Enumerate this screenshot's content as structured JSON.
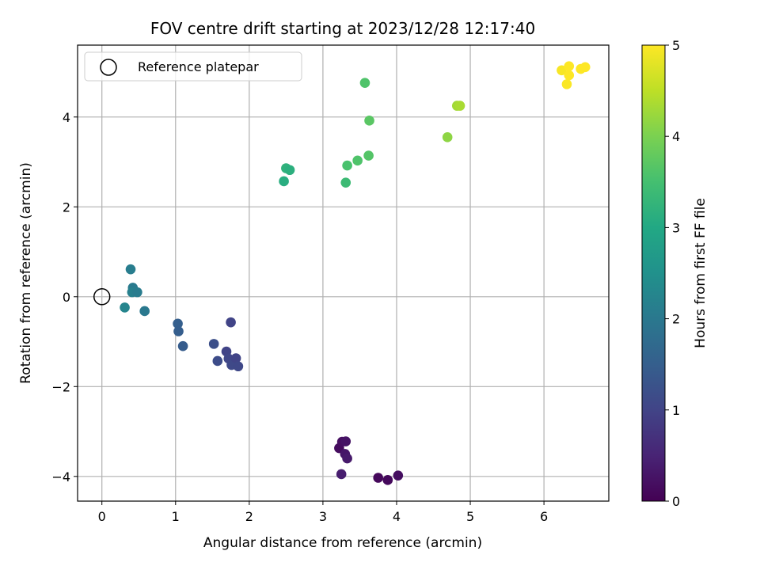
{
  "chart_data": {
    "type": "scatter",
    "title": "FOV centre drift starting at 2023/12/28 12:17:40",
    "xlabel": "Angular distance from reference (arcmin)",
    "ylabel": "Rotation from reference (arcmin)",
    "xlim": [
      -0.33,
      6.88
    ],
    "ylim": [
      -4.55,
      5.6
    ],
    "x_ticks": [
      0,
      1,
      2,
      3,
      4,
      5,
      6
    ],
    "y_ticks": [
      -4,
      -2,
      0,
      2,
      4
    ],
    "x_tick_labels": [
      "0",
      "1",
      "2",
      "3",
      "4",
      "5",
      "6"
    ],
    "y_tick_labels": [
      "−4",
      "−2",
      "0",
      "2",
      "4"
    ],
    "grid": true,
    "colormap": "viridis",
    "colorbar": {
      "label": "Hours from first FF file",
      "min": 0,
      "max": 5,
      "ticks": [
        "0",
        "1",
        "2",
        "3",
        "4",
        "5"
      ]
    },
    "legend": {
      "placement": "top-left",
      "entries": [
        {
          "label": "Reference platepar",
          "marker": "open-circle",
          "x": 0,
          "y": 0
        }
      ]
    },
    "points": [
      {
        "x": 3.22,
        "y": -3.37,
        "hours": 0.15
      },
      {
        "x": 3.26,
        "y": -3.23,
        "hours": 0.2
      },
      {
        "x": 3.31,
        "y": -3.22,
        "hours": 0.25
      },
      {
        "x": 3.3,
        "y": -3.5,
        "hours": 0.3
      },
      {
        "x": 3.33,
        "y": -3.6,
        "hours": 0.35
      },
      {
        "x": 3.25,
        "y": -3.95,
        "hours": 0.4
      },
      {
        "x": 3.75,
        "y": -4.03,
        "hours": 0.1
      },
      {
        "x": 3.88,
        "y": -4.08,
        "hours": 0.12
      },
      {
        "x": 4.02,
        "y": -3.98,
        "hours": 0.18
      },
      {
        "x": 1.75,
        "y": -0.57,
        "hours": 1.0
      },
      {
        "x": 1.52,
        "y": -1.05,
        "hours": 1.2
      },
      {
        "x": 1.69,
        "y": -1.22,
        "hours": 1.0
      },
      {
        "x": 1.72,
        "y": -1.38,
        "hours": 1.05
      },
      {
        "x": 1.57,
        "y": -1.43,
        "hours": 1.15
      },
      {
        "x": 1.76,
        "y": -1.52,
        "hours": 1.1
      },
      {
        "x": 1.82,
        "y": -1.37,
        "hours": 1.0
      },
      {
        "x": 1.85,
        "y": -1.55,
        "hours": 1.08
      },
      {
        "x": 1.03,
        "y": -0.6,
        "hours": 1.5
      },
      {
        "x": 1.04,
        "y": -0.77,
        "hours": 1.48
      },
      {
        "x": 1.1,
        "y": -1.1,
        "hours": 1.45
      },
      {
        "x": 0.39,
        "y": 0.61,
        "hours": 2.1
      },
      {
        "x": 0.42,
        "y": 0.2,
        "hours": 2.05
      },
      {
        "x": 0.41,
        "y": 0.1,
        "hours": 2.15
      },
      {
        "x": 0.48,
        "y": 0.1,
        "hours": 2.08
      },
      {
        "x": 0.31,
        "y": -0.24,
        "hours": 2.25
      },
      {
        "x": 0.58,
        "y": -0.32,
        "hours": 2.0
      },
      {
        "x": 2.5,
        "y": 2.86,
        "hours": 3.2
      },
      {
        "x": 2.55,
        "y": 2.82,
        "hours": 3.15
      },
      {
        "x": 2.47,
        "y": 2.57,
        "hours": 3.1
      },
      {
        "x": 3.31,
        "y": 2.54,
        "hours": 3.4
      },
      {
        "x": 3.33,
        "y": 2.92,
        "hours": 3.55
      },
      {
        "x": 3.47,
        "y": 3.03,
        "hours": 3.6
      },
      {
        "x": 3.62,
        "y": 3.14,
        "hours": 3.65
      },
      {
        "x": 3.63,
        "y": 3.92,
        "hours": 3.7
      },
      {
        "x": 3.57,
        "y": 4.76,
        "hours": 3.6
      },
      {
        "x": 4.69,
        "y": 3.55,
        "hours": 4.15
      },
      {
        "x": 4.82,
        "y": 4.25,
        "hours": 4.3
      },
      {
        "x": 4.86,
        "y": 4.25,
        "hours": 4.35
      },
      {
        "x": 6.24,
        "y": 5.04,
        "hours": 4.95
      },
      {
        "x": 6.34,
        "y": 5.13,
        "hours": 5.0
      },
      {
        "x": 6.31,
        "y": 4.73,
        "hours": 4.98
      },
      {
        "x": 6.34,
        "y": 4.93,
        "hours": 5.0
      },
      {
        "x": 6.5,
        "y": 5.07,
        "hours": 5.0
      },
      {
        "x": 6.56,
        "y": 5.11,
        "hours": 5.0
      }
    ]
  }
}
